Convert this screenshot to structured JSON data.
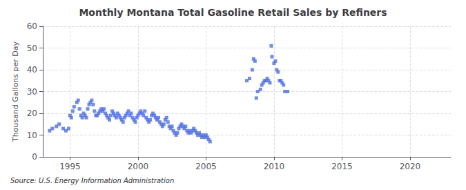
{
  "chart_data": {
    "type": "scatter",
    "title": "Monthly Montana Total Gasoline Retail Sales by Refiners",
    "ylabel": "Thousand Gallons per Day",
    "annotations": [
      "Source: U.S. Energy Information Administration"
    ],
    "marker": "square",
    "grid": true,
    "xlim": [
      1993.0,
      2023.0
    ],
    "ylim": [
      0,
      60
    ],
    "xticks": [
      1995,
      2000,
      2005,
      2010,
      2015,
      2020
    ],
    "yticks": [
      0,
      10,
      20,
      30,
      40,
      50,
      60
    ],
    "x": [
      1993.5,
      1993.7,
      1994.0,
      1994.2,
      1994.5,
      1994.7,
      1994.9,
      1995.0,
      1995.1,
      1995.2,
      1995.3,
      1995.5,
      1995.6,
      1995.7,
      1995.8,
      1995.9,
      1996.0,
      1996.1,
      1996.2,
      1996.3,
      1996.4,
      1996.5,
      1996.6,
      1996.7,
      1996.8,
      1996.9,
      1997.0,
      1997.1,
      1997.2,
      1997.3,
      1997.4,
      1997.5,
      1997.6,
      1997.7,
      1997.8,
      1997.9,
      1998.0,
      1998.1,
      1998.2,
      1998.3,
      1998.4,
      1998.5,
      1998.6,
      1998.7,
      1998.8,
      1998.9,
      1999.0,
      1999.1,
      1999.2,
      1999.3,
      1999.4,
      1999.5,
      1999.6,
      1999.7,
      1999.8,
      1999.9,
      2000.0,
      2000.1,
      2000.2,
      2000.3,
      2000.4,
      2000.5,
      2000.6,
      2000.7,
      2000.8,
      2000.9,
      2001.0,
      2001.1,
      2001.2,
      2001.3,
      2001.4,
      2001.5,
      2001.6,
      2001.7,
      2001.8,
      2001.9,
      2002.0,
      2002.1,
      2002.2,
      2002.3,
      2002.4,
      2002.5,
      2002.6,
      2002.7,
      2002.8,
      2002.9,
      2003.0,
      2003.1,
      2003.2,
      2003.3,
      2003.4,
      2003.5,
      2003.6,
      2003.7,
      2003.8,
      2003.9,
      2004.0,
      2004.1,
      2004.2,
      2004.3,
      2004.4,
      2004.5,
      2004.6,
      2004.7,
      2004.8,
      2004.9,
      2005.0,
      2005.1,
      2005.2,
      2005.3,
      2008.0,
      2008.2,
      2008.4,
      2008.5,
      2008.6,
      2008.7,
      2008.8,
      2009.0,
      2009.1,
      2009.2,
      2009.3,
      2009.4,
      2009.5,
      2009.6,
      2009.7,
      2009.8,
      2009.85,
      2010.0,
      2010.1,
      2010.2,
      2010.3,
      2010.4,
      2010.5,
      2010.6,
      2010.7,
      2010.8,
      2011.0
    ],
    "values": [
      12,
      13,
      14,
      15,
      13,
      12,
      13,
      19,
      18,
      21,
      23,
      25,
      26,
      22,
      19,
      18,
      20,
      19,
      18,
      22,
      24,
      25,
      26,
      24,
      21,
      19,
      19,
      20,
      21,
      22,
      21,
      22,
      20,
      19,
      18,
      17,
      19,
      21,
      20,
      19,
      18,
      20,
      19,
      18,
      17,
      16,
      18,
      19,
      20,
      21,
      19,
      20,
      18,
      17,
      16,
      18,
      19,
      20,
      21,
      20,
      19,
      21,
      18,
      17,
      16,
      17,
      19,
      20,
      19,
      18,
      17,
      18,
      16,
      15,
      14,
      15,
      17,
      18,
      16,
      14,
      13,
      14,
      12,
      11,
      10,
      11,
      13,
      14,
      15,
      14,
      13,
      14,
      12,
      11,
      12,
      11,
      12,
      13,
      12,
      11,
      10,
      11,
      10,
      9,
      10,
      9,
      10,
      9,
      8,
      7,
      35,
      36,
      40,
      45,
      44,
      27,
      30,
      31,
      33,
      34,
      35,
      35,
      36,
      35,
      34,
      51,
      46,
      43,
      44,
      40,
      39,
      35,
      35,
      34,
      33,
      30,
      30
    ]
  }
}
